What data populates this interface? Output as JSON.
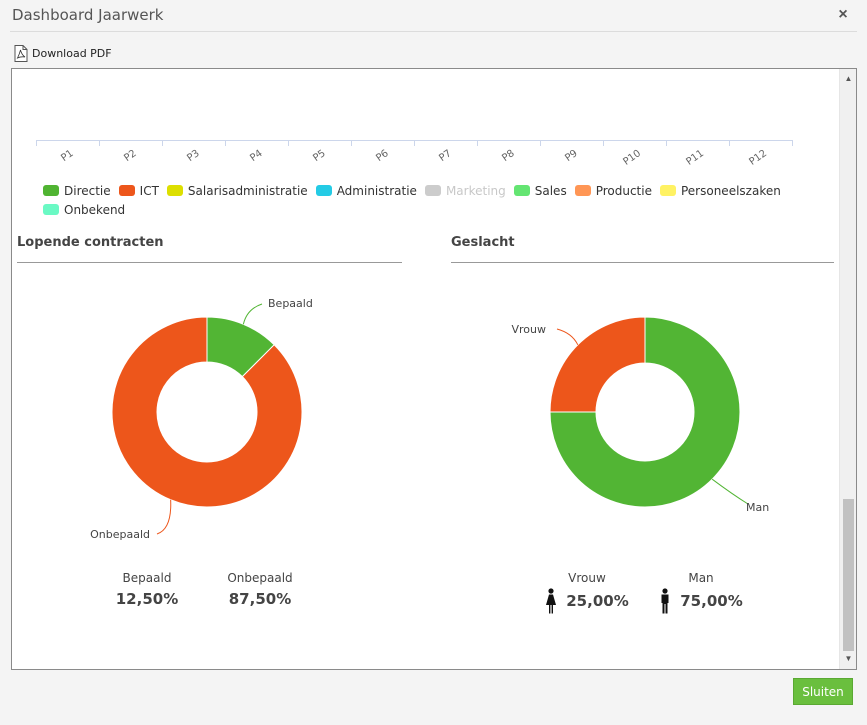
{
  "dialog": {
    "title": "Dashboard Jaarwerk",
    "close_symbol": "×",
    "close_icon": "close-icon",
    "footer_button": "Sluiten"
  },
  "toolbar": {
    "download_label": "Download PDF",
    "download_icon": "pdf-icon"
  },
  "colors": {
    "accent_green": "#6abf3e",
    "chart_green": "#52b534",
    "chart_orange": "#ed561b"
  },
  "chart_data": [
    {
      "type": "bar",
      "categories": [
        "P1",
        "P2",
        "P3",
        "P4",
        "P5",
        "P6",
        "P7",
        "P8",
        "P9",
        "P10",
        "P11",
        "P12"
      ],
      "legend_position": "bottom",
      "series": [
        {
          "name": "Directie",
          "color": "#50b432",
          "visible": true
        },
        {
          "name": "ICT",
          "color": "#ed561b",
          "visible": true
        },
        {
          "name": "Salarisadministratie",
          "color": "#dddf00",
          "visible": true
        },
        {
          "name": "Administratie",
          "color": "#24cbe5",
          "visible": true
        },
        {
          "name": "Marketing",
          "color": "#cccccc",
          "visible": false
        },
        {
          "name": "Sales",
          "color": "#64e572",
          "visible": true
        },
        {
          "name": "Productie",
          "color": "#ff9655",
          "visible": true
        },
        {
          "name": "Personeelszaken",
          "color": "#fff263",
          "visible": true
        },
        {
          "name": "Onbekend",
          "color": "#6af9c4",
          "visible": true
        }
      ]
    },
    {
      "type": "pie",
      "title": "Lopende contracten",
      "labels": [
        "Bepaald",
        "Onbepaald"
      ],
      "values": [
        12.5,
        87.5
      ],
      "colors": [
        "#52b534",
        "#ed561b"
      ],
      "value_texts": [
        "12,50%",
        "87,50%"
      ]
    },
    {
      "type": "pie",
      "title": "Geslacht",
      "labels": [
        "Man",
        "Vrouw"
      ],
      "values": [
        75,
        25
      ],
      "colors": [
        "#52b534",
        "#ed561b"
      ],
      "value_texts": [
        "75,00%",
        "25,00%"
      ],
      "icons": [
        "male-icon",
        "female-icon"
      ]
    }
  ]
}
